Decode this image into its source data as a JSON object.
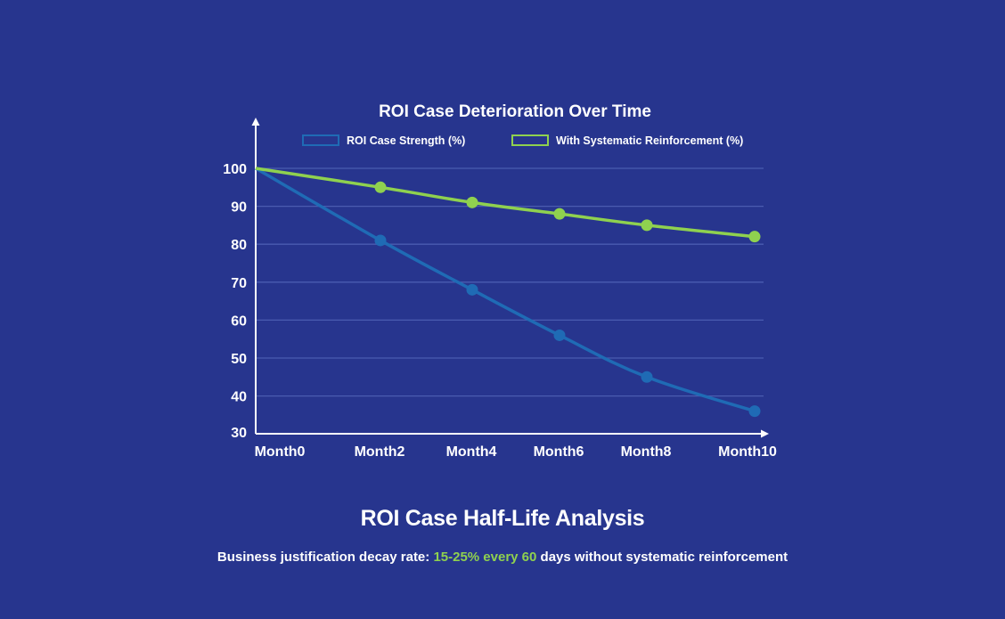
{
  "chart_data": {
    "type": "line",
    "title": "ROI Case Deterioration Over Time",
    "categories": [
      "Month0",
      "Month2",
      "Month4",
      "Month6",
      "Month8",
      "Month10"
    ],
    "series": [
      {
        "name": "ROI Case Strength (%)",
        "values": [
          100,
          81,
          68,
          56,
          45,
          36
        ],
        "color": "#1f6bb5"
      },
      {
        "name": "With Systematic Reinforcement (%)",
        "values": [
          100,
          95,
          91,
          88,
          85,
          82
        ],
        "color": "#8fd14f"
      }
    ],
    "yticks": [
      100,
      90,
      80,
      70,
      60,
      50,
      40,
      30
    ],
    "ylim": [
      30,
      100
    ],
    "grid": true,
    "legend": "top",
    "colors": {
      "background": "#27358e",
      "grid": "#4a5cb0",
      "axis": "#ffffff"
    }
  },
  "analysis": {
    "title": "ROI Case Half-Life Analysis",
    "caption_prefix": "Business justification decay rate: ",
    "caption_highlight": "15-25% every 60",
    "caption_suffix": " days without systematic reinforcement"
  }
}
